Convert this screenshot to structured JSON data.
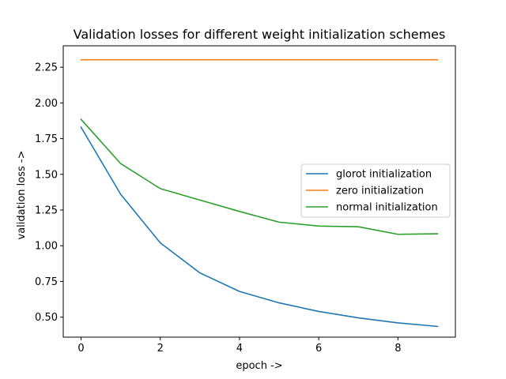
{
  "chart_data": {
    "type": "line",
    "title": "Validation losses for different weight initialization schemes",
    "xlabel": "epoch ->",
    "ylabel": "validation loss ->",
    "x": [
      0,
      1,
      2,
      3,
      4,
      5,
      6,
      7,
      8,
      9
    ],
    "xlim": [
      -0.45,
      9.45
    ],
    "ylim": [
      0.36,
      2.4
    ],
    "xticks": [
      0,
      2,
      4,
      6,
      8
    ],
    "xtick_labels": [
      "0",
      "2",
      "4",
      "6",
      "8"
    ],
    "yticks": [
      0.5,
      0.75,
      1.0,
      1.25,
      1.5,
      1.75,
      2.0,
      2.25
    ],
    "ytick_labels": [
      "0.50",
      "0.75",
      "1.00",
      "1.25",
      "1.50",
      "1.75",
      "2.00",
      "2.25"
    ],
    "grid": false,
    "legend_position": "center-right",
    "series": [
      {
        "name": "glorot initialization",
        "color": "#1f77b4",
        "values": [
          1.83,
          1.36,
          1.02,
          0.81,
          0.68,
          0.6,
          0.54,
          0.495,
          0.46,
          0.435
        ]
      },
      {
        "name": "zero initialization",
        "color": "#ff7f0e",
        "values": [
          2.302,
          2.302,
          2.302,
          2.302,
          2.302,
          2.302,
          2.302,
          2.302,
          2.302,
          2.302
        ]
      },
      {
        "name": "normal initialization",
        "color": "#2ca02c",
        "values": [
          1.885,
          1.575,
          1.4,
          1.32,
          1.24,
          1.165,
          1.138,
          1.133,
          1.08,
          1.084
        ]
      }
    ]
  }
}
